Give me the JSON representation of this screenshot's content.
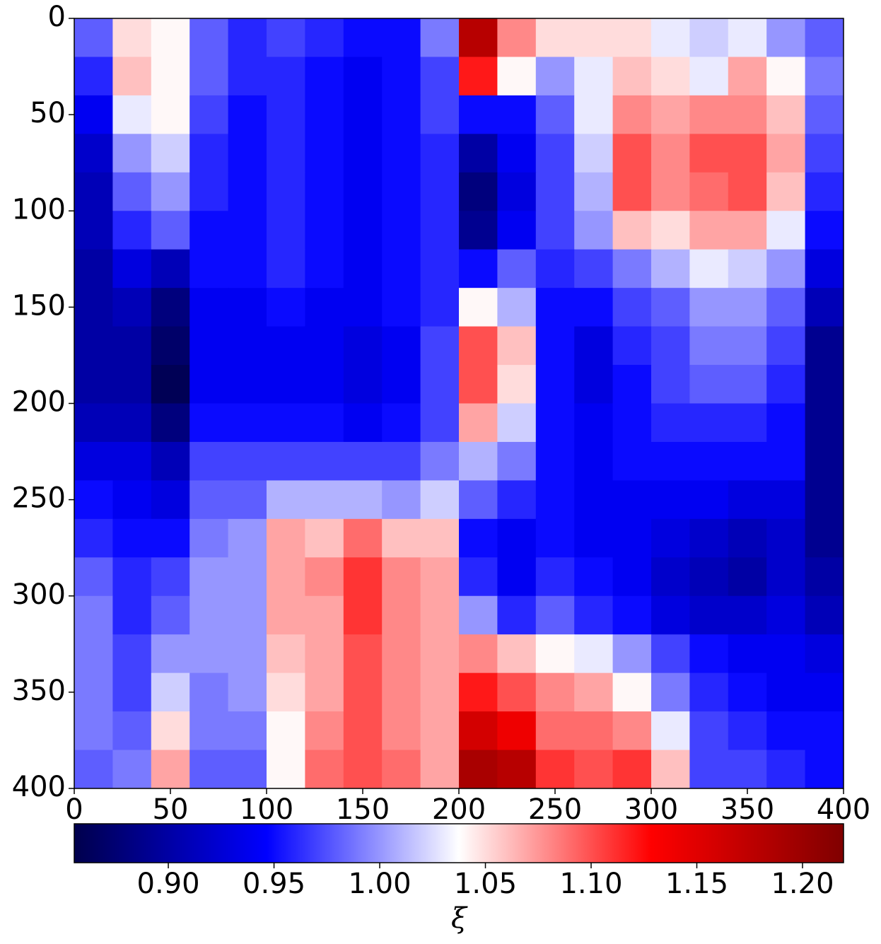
{
  "chart_data": {
    "type": "heatmap",
    "colormap": "seismic",
    "x": [
      10,
      30,
      50,
      70,
      90,
      110,
      130,
      150,
      170,
      190,
      210,
      230,
      250,
      270,
      290,
      310,
      330,
      350,
      370,
      390
    ],
    "y": [
      10,
      30,
      50,
      70,
      90,
      110,
      130,
      150,
      170,
      190,
      210,
      230,
      250,
      270,
      290,
      310,
      330,
      350,
      370,
      390
    ],
    "xlim": [
      0,
      400
    ],
    "ylim": [
      400,
      0
    ],
    "xticks": [
      0,
      50,
      100,
      150,
      200,
      250,
      300,
      350,
      400
    ],
    "yticks": [
      0,
      50,
      100,
      150,
      200,
      250,
      300,
      350,
      400
    ],
    "clim": [
      0.8555,
      1.2194
    ],
    "cticks": [
      {
        "value": 0.9,
        "label": "0.90"
      },
      {
        "value": 0.95,
        "label": "0.95"
      },
      {
        "value": 1,
        "label": "1.00"
      },
      {
        "value": 1.05,
        "label": "1.05"
      },
      {
        "value": 1.1,
        "label": "1.10"
      },
      {
        "value": 1.15,
        "label": "1.15"
      },
      {
        "value": 1.2,
        "label": "1.20"
      }
    ],
    "colorbar_label": "ξ",
    "z": [
      [
        0.98,
        1.05,
        1.04,
        0.98,
        0.96,
        0.97,
        0.96,
        0.95,
        0.95,
        0.99,
        1.18,
        1.08,
        1.05,
        1.05,
        1.05,
        1.03,
        1.02,
        1.03,
        1.0,
        0.98
      ],
      [
        0.96,
        1.06,
        1.04,
        0.98,
        0.96,
        0.96,
        0.95,
        0.94,
        0.95,
        0.97,
        1.12,
        1.04,
        1.0,
        1.03,
        1.06,
        1.05,
        1.03,
        1.07,
        1.04,
        0.99
      ],
      [
        0.94,
        1.03,
        1.04,
        0.97,
        0.95,
        0.96,
        0.95,
        0.94,
        0.95,
        0.97,
        0.95,
        0.95,
        0.98,
        1.03,
        1.08,
        1.07,
        1.08,
        1.08,
        1.06,
        0.98
      ],
      [
        0.92,
        1.0,
        1.02,
        0.96,
        0.95,
        0.96,
        0.95,
        0.94,
        0.95,
        0.96,
        0.9,
        0.94,
        0.97,
        1.02,
        1.1,
        1.08,
        1.1,
        1.1,
        1.07,
        0.97
      ],
      [
        0.91,
        0.98,
        1.0,
        0.96,
        0.95,
        0.96,
        0.95,
        0.94,
        0.95,
        0.96,
        0.88,
        0.93,
        0.97,
        1.01,
        1.1,
        1.08,
        1.09,
        1.1,
        1.06,
        0.96
      ],
      [
        0.91,
        0.96,
        0.98,
        0.95,
        0.95,
        0.96,
        0.95,
        0.94,
        0.95,
        0.96,
        0.89,
        0.94,
        0.97,
        1.0,
        1.06,
        1.05,
        1.07,
        1.07,
        1.03,
        0.95
      ],
      [
        0.9,
        0.93,
        0.91,
        0.95,
        0.95,
        0.96,
        0.95,
        0.94,
        0.95,
        0.96,
        0.95,
        0.98,
        0.96,
        0.97,
        0.99,
        1.01,
        1.03,
        1.02,
        1.0,
        0.93
      ],
      [
        0.9,
        0.91,
        0.88,
        0.94,
        0.94,
        0.95,
        0.94,
        0.94,
        0.95,
        0.96,
        1.04,
        1.01,
        0.95,
        0.95,
        0.97,
        0.98,
        1.0,
        1.0,
        0.98,
        0.91
      ],
      [
        0.9,
        0.9,
        0.87,
        0.94,
        0.94,
        0.94,
        0.94,
        0.93,
        0.94,
        0.97,
        1.1,
        1.06,
        0.95,
        0.93,
        0.96,
        0.97,
        0.99,
        0.99,
        0.97,
        0.89
      ],
      [
        0.9,
        0.9,
        0.86,
        0.94,
        0.94,
        0.94,
        0.94,
        0.93,
        0.94,
        0.97,
        1.1,
        1.05,
        0.95,
        0.93,
        0.95,
        0.97,
        0.98,
        0.98,
        0.96,
        0.89
      ],
      [
        0.91,
        0.91,
        0.88,
        0.95,
        0.95,
        0.95,
        0.95,
        0.94,
        0.95,
        0.97,
        1.07,
        1.02,
        0.95,
        0.94,
        0.95,
        0.96,
        0.96,
        0.96,
        0.95,
        0.89
      ],
      [
        0.93,
        0.93,
        0.91,
        0.97,
        0.97,
        0.97,
        0.97,
        0.97,
        0.97,
        0.99,
        1.01,
        0.99,
        0.95,
        0.94,
        0.95,
        0.95,
        0.95,
        0.95,
        0.95,
        0.89
      ],
      [
        0.95,
        0.94,
        0.93,
        0.98,
        0.98,
        1.01,
        1.01,
        1.01,
        1.0,
        1.02,
        0.98,
        0.96,
        0.95,
        0.94,
        0.94,
        0.94,
        0.94,
        0.93,
        0.93,
        0.89
      ],
      [
        0.96,
        0.95,
        0.95,
        0.99,
        1.0,
        1.07,
        1.06,
        1.09,
        1.06,
        1.06,
        0.95,
        0.94,
        0.95,
        0.94,
        0.94,
        0.93,
        0.92,
        0.91,
        0.92,
        0.89
      ],
      [
        0.98,
        0.96,
        0.97,
        1.0,
        1.0,
        1.07,
        1.08,
        1.11,
        1.08,
        1.07,
        0.96,
        0.94,
        0.96,
        0.95,
        0.94,
        0.92,
        0.91,
        0.9,
        0.92,
        0.9
      ],
      [
        0.99,
        0.96,
        0.98,
        1.0,
        1.0,
        1.07,
        1.07,
        1.11,
        1.08,
        1.07,
        1.0,
        0.96,
        0.98,
        0.96,
        0.95,
        0.93,
        0.92,
        0.92,
        0.93,
        0.91
      ],
      [
        0.99,
        0.97,
        1.0,
        1.0,
        1.0,
        1.06,
        1.07,
        1.1,
        1.08,
        1.07,
        1.08,
        1.06,
        1.04,
        1.03,
        1.0,
        0.97,
        0.95,
        0.94,
        0.94,
        0.93
      ],
      [
        0.99,
        0.97,
        1.02,
        0.99,
        1.0,
        1.05,
        1.07,
        1.1,
        1.08,
        1.07,
        1.12,
        1.1,
        1.08,
        1.07,
        1.04,
        0.99,
        0.96,
        0.95,
        0.94,
        0.94
      ],
      [
        0.99,
        0.98,
        1.05,
        0.99,
        0.99,
        1.04,
        1.08,
        1.1,
        1.08,
        1.07,
        1.16,
        1.14,
        1.09,
        1.09,
        1.08,
        1.03,
        0.97,
        0.96,
        0.95,
        0.95
      ],
      [
        0.98,
        0.99,
        1.07,
        0.98,
        0.98,
        1.04,
        1.09,
        1.1,
        1.09,
        1.07,
        1.19,
        1.18,
        1.11,
        1.1,
        1.11,
        1.06,
        0.97,
        0.97,
        0.96,
        0.95
      ]
    ]
  }
}
